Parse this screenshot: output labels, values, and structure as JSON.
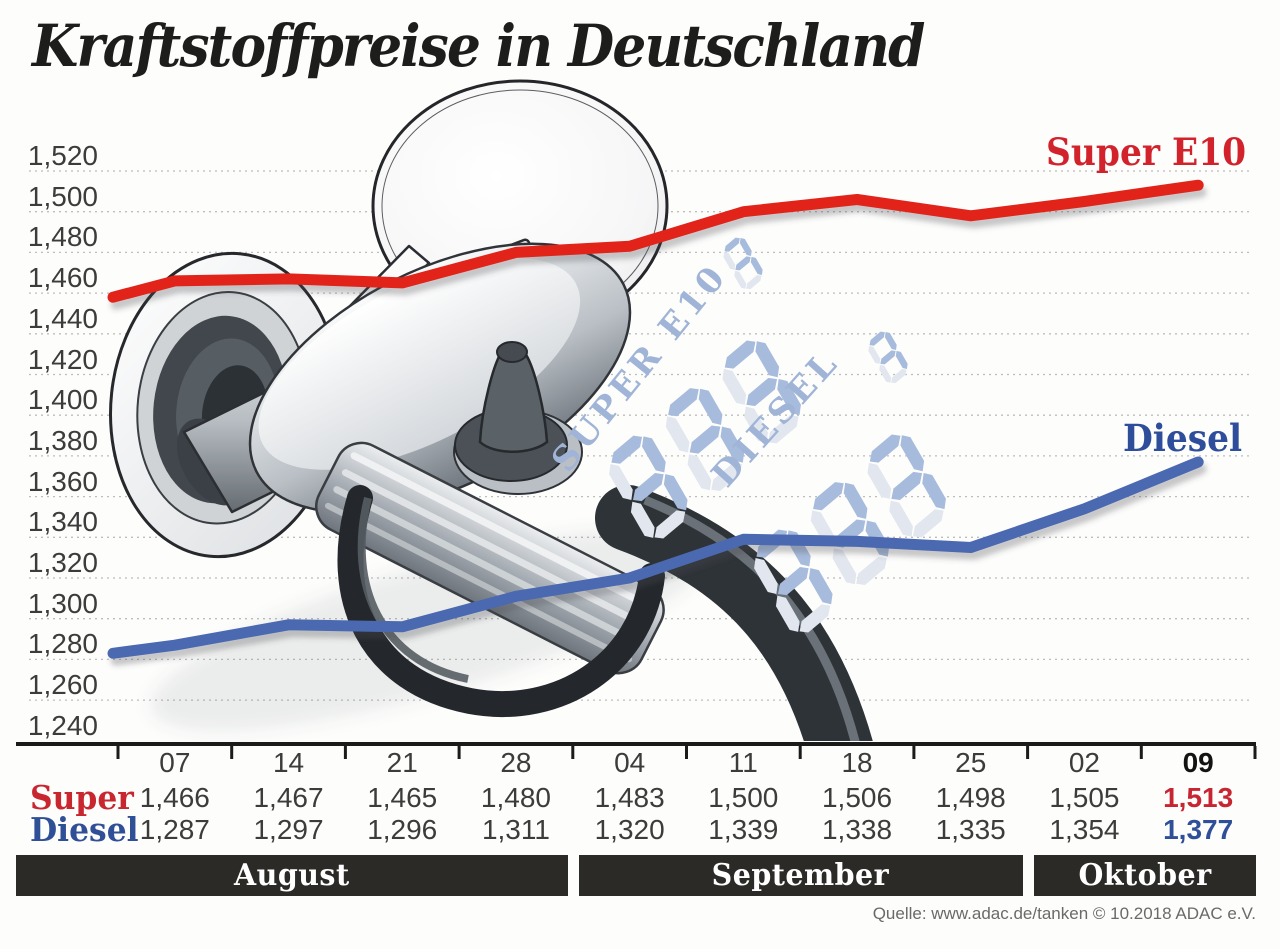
{
  "title": "Kraftstoffpreise in Deutschland",
  "source": "Quelle: www.adac.de/tanken   © 10.2018   ADAC e.V.",
  "y_axis": {
    "labels": [
      "1,520",
      "1,500",
      "1,480",
      "1,460",
      "1,440",
      "1,420",
      "1,400",
      "1,380",
      "1,360",
      "1,340",
      "1,320",
      "1,300",
      "1,280",
      "1,260",
      "1,240"
    ]
  },
  "table": {
    "dates": [
      "07",
      "14",
      "21",
      "28",
      "04",
      "11",
      "18",
      "25",
      "02",
      "09"
    ],
    "highlight_index": 9,
    "super_row": {
      "label": "Super",
      "values": [
        "1,466",
        "1,467",
        "1,465",
        "1,480",
        "1,483",
        "1,500",
        "1,506",
        "1,498",
        "1,505",
        "1,513"
      ]
    },
    "diesel_row": {
      "label": "Diesel",
      "values": [
        "1,287",
        "1,297",
        "1,296",
        "1,311",
        "1,320",
        "1,339",
        "1,338",
        "1,335",
        "1,354",
        "1,377"
      ]
    }
  },
  "months": [
    {
      "label": "August",
      "start_col": 0,
      "end_col": 4
    },
    {
      "label": "September",
      "start_col": 4,
      "end_col": 8
    },
    {
      "label": "Oktober",
      "start_col": 8,
      "end_col": 10
    }
  ],
  "display_decoration": {
    "super_label": "SUPER E10",
    "diesel_label": "DIESEL",
    "digits": "888",
    "sup_digit": "8",
    "segment_blue": "#a7bbdc",
    "segment_pale": "#e2e6ee",
    "text_color": "#9fb4d6"
  },
  "chart_data": {
    "type": "line",
    "title": "Kraftstoffpreise in Deutschland",
    "x_dates": [
      "07",
      "14",
      "21",
      "28",
      "04",
      "11",
      "18",
      "25",
      "02",
      "09"
    ],
    "x_months": [
      "August",
      "August",
      "August",
      "August",
      "September",
      "September",
      "September",
      "September",
      "Oktober",
      "Oktober"
    ],
    "ylim": [
      1.24,
      1.52
    ],
    "ytick_step": 0.02,
    "grid": "horizontal-dotted",
    "legend_position": "labels-at-line-ends",
    "series": [
      {
        "name": "Super E10",
        "color": "#e2231a",
        "lead_in": 1.458,
        "values": [
          1.466,
          1.467,
          1.465,
          1.48,
          1.483,
          1.5,
          1.506,
          1.498,
          1.505,
          1.513
        ]
      },
      {
        "name": "Diesel",
        "color": "#4b69b1",
        "lead_in": 1.283,
        "values": [
          1.287,
          1.297,
          1.296,
          1.311,
          1.32,
          1.339,
          1.338,
          1.335,
          1.354,
          1.377
        ]
      }
    ]
  }
}
